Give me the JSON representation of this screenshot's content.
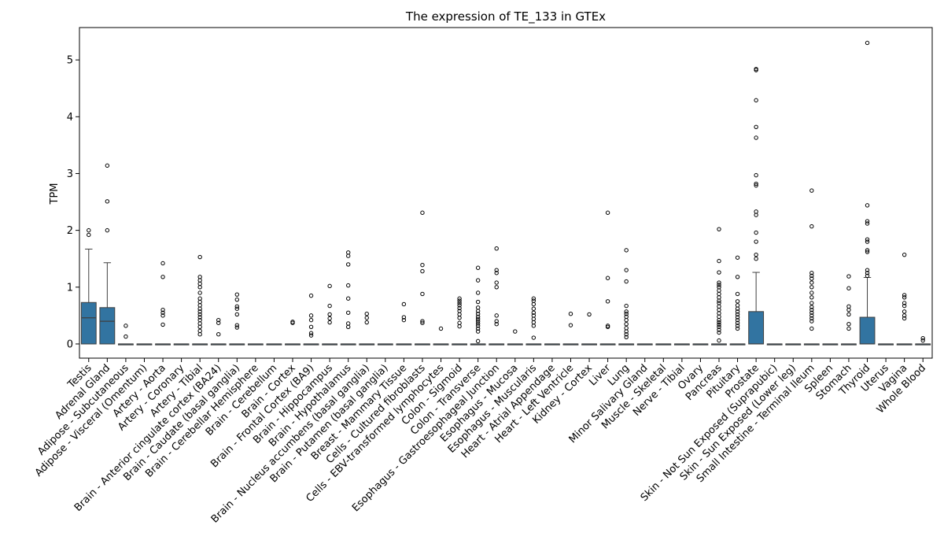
{
  "chart_data": {
    "type": "box",
    "title": "The expression of TE_133 in GTEx",
    "xlabel": "",
    "ylabel": "TPM",
    "ylim": [
      -0.25,
      5.57
    ],
    "yticks": [
      0,
      1,
      2,
      3,
      4,
      5
    ],
    "box_color": "#3274a1",
    "categories": [
      {
        "name": "Testis",
        "q1": 0,
        "median": 0.46,
        "q3": 0.73,
        "whisker_low": 0,
        "whisker_high": 1.67,
        "outliers": [
          1.92,
          2.0
        ]
      },
      {
        "name": "Adrenal Gland",
        "q1": 0,
        "median": 0.4,
        "q3": 0.64,
        "whisker_low": 0,
        "whisker_high": 1.43,
        "outliers": [
          2.0,
          2.51,
          3.14
        ]
      },
      {
        "name": "Adipose - Subcutaneous",
        "q1": 0,
        "median": 0,
        "q3": 0,
        "whisker_low": 0,
        "whisker_high": 0,
        "outliers": [
          0.13,
          0.32
        ]
      },
      {
        "name": "Adipose - Visceral (Omentum)",
        "q1": 0,
        "median": 0,
        "q3": 0,
        "whisker_low": 0,
        "whisker_high": 0,
        "outliers": []
      },
      {
        "name": "Artery - Aorta",
        "q1": 0,
        "median": 0,
        "q3": 0,
        "whisker_low": 0,
        "whisker_high": 0,
        "outliers": [
          0.34,
          0.5,
          0.55,
          0.6,
          1.18,
          1.42
        ]
      },
      {
        "name": "Artery - Coronary",
        "q1": 0,
        "median": 0,
        "q3": 0,
        "whisker_low": 0,
        "whisker_high": 0,
        "outliers": []
      },
      {
        "name": "Artery - Tibial",
        "q1": 0,
        "median": 0,
        "q3": 0,
        "whisker_low": 0,
        "whisker_high": 0,
        "outliers": [
          0.17,
          0.23,
          0.3,
          0.36,
          0.42,
          0.47,
          0.52,
          0.57,
          0.62,
          0.68,
          0.74,
          0.8,
          0.9,
          1.0,
          1.06,
          1.12,
          1.18,
          1.53
        ]
      },
      {
        "name": "Brain - Anterior cingulate cortex (BA24)",
        "q1": 0,
        "median": 0,
        "q3": 0,
        "whisker_low": 0,
        "whisker_high": 0,
        "outliers": [
          0.17,
          0.37,
          0.42
        ]
      },
      {
        "name": "Brain - Caudate (basal ganglia)",
        "q1": 0,
        "median": 0,
        "q3": 0,
        "whisker_low": 0,
        "whisker_high": 0,
        "outliers": [
          0.29,
          0.33,
          0.52,
          0.62,
          0.66,
          0.78,
          0.87
        ]
      },
      {
        "name": "Brain - Cerebellar Hemisphere",
        "q1": 0,
        "median": 0,
        "q3": 0,
        "whisker_low": 0,
        "whisker_high": 0,
        "outliers": []
      },
      {
        "name": "Brain - Cerebellum",
        "q1": 0,
        "median": 0,
        "q3": 0,
        "whisker_low": 0,
        "whisker_high": 0,
        "outliers": []
      },
      {
        "name": "Brain - Cortex",
        "q1": 0,
        "median": 0,
        "q3": 0,
        "whisker_low": 0,
        "whisker_high": 0,
        "outliers": [
          0.37,
          0.39
        ]
      },
      {
        "name": "Brain - Frontal Cortex (BA9)",
        "q1": 0,
        "median": 0,
        "q3": 0,
        "whisker_low": 0,
        "whisker_high": 0,
        "outliers": [
          0.15,
          0.19,
          0.3,
          0.42,
          0.5,
          0.85
        ]
      },
      {
        "name": "Brain - Hippocampus",
        "q1": 0,
        "median": 0,
        "q3": 0,
        "whisker_low": 0,
        "whisker_high": 0,
        "outliers": [
          0.38,
          0.45,
          0.52,
          0.67,
          1.02
        ]
      },
      {
        "name": "Brain - Hypothalamus",
        "q1": 0,
        "median": 0,
        "q3": 0,
        "whisker_low": 0,
        "whisker_high": 0,
        "outliers": [
          0.3,
          0.36,
          0.55,
          0.8,
          1.03,
          1.4,
          1.55,
          1.61
        ]
      },
      {
        "name": "Brain - Nucleus accumbens (basal ganglia)",
        "q1": 0,
        "median": 0,
        "q3": 0,
        "whisker_low": 0,
        "whisker_high": 0,
        "outliers": [
          0.38,
          0.46,
          0.53
        ]
      },
      {
        "name": "Brain - Putamen (basal ganglia)",
        "q1": 0,
        "median": 0,
        "q3": 0,
        "whisker_low": 0,
        "whisker_high": 0,
        "outliers": []
      },
      {
        "name": "Breast - Mammary Tissue",
        "q1": 0,
        "median": 0,
        "q3": 0,
        "whisker_low": 0,
        "whisker_high": 0,
        "outliers": [
          0.42,
          0.47,
          0.7
        ]
      },
      {
        "name": "Cells - Cultured fibroblasts",
        "q1": 0,
        "median": 0,
        "q3": 0,
        "whisker_low": 0,
        "whisker_high": 0,
        "outliers": [
          0.37,
          0.4,
          0.88,
          1.28,
          1.39,
          2.31
        ]
      },
      {
        "name": "Cells - EBV-transformed lymphocytes",
        "q1": 0,
        "median": 0,
        "q3": 0,
        "whisker_low": 0,
        "whisker_high": 0,
        "outliers": [
          0.27
        ]
      },
      {
        "name": "Colon - Sigmoid",
        "q1": 0,
        "median": 0,
        "q3": 0,
        "whisker_low": 0,
        "whisker_high": 0,
        "outliers": [
          0.31,
          0.37,
          0.46,
          0.52,
          0.58,
          0.63,
          0.68,
          0.72,
          0.76,
          0.8
        ]
      },
      {
        "name": "Colon - Transverse",
        "q1": 0,
        "median": 0,
        "q3": 0,
        "whisker_low": 0,
        "whisker_high": 0,
        "outliers": [
          0.05,
          0.22,
          0.27,
          0.32,
          0.36,
          0.4,
          0.44,
          0.48,
          0.53,
          0.58,
          0.64,
          0.74,
          0.9,
          1.12,
          1.34
        ]
      },
      {
        "name": "Esophagus - Gastroesophageal Junction",
        "q1": 0,
        "median": 0,
        "q3": 0,
        "whisker_low": 0,
        "whisker_high": 0,
        "outliers": [
          0.35,
          0.4,
          0.5,
          1.0,
          1.08,
          1.25,
          1.3,
          1.68
        ]
      },
      {
        "name": "Esophagus - Mucosa",
        "q1": 0,
        "median": 0,
        "q3": 0,
        "whisker_low": 0,
        "whisker_high": 0,
        "outliers": [
          0.22
        ]
      },
      {
        "name": "Esophagus - Muscularis",
        "q1": 0,
        "median": 0,
        "q3": 0,
        "whisker_low": 0,
        "whisker_high": 0,
        "outliers": [
          0.11,
          0.32,
          0.38,
          0.44,
          0.5,
          0.55,
          0.62,
          0.7,
          0.76,
          0.8
        ]
      },
      {
        "name": "Heart - Atrial Appendage",
        "q1": 0,
        "median": 0,
        "q3": 0,
        "whisker_low": 0,
        "whisker_high": 0,
        "outliers": []
      },
      {
        "name": "Heart - Left Ventricle",
        "q1": 0,
        "median": 0,
        "q3": 0,
        "whisker_low": 0,
        "whisker_high": 0,
        "outliers": [
          0.33,
          0.53
        ]
      },
      {
        "name": "Kidney - Cortex",
        "q1": 0,
        "median": 0,
        "q3": 0,
        "whisker_low": 0,
        "whisker_high": 0,
        "outliers": [
          0.52
        ]
      },
      {
        "name": "Liver",
        "q1": 0,
        "median": 0,
        "q3": 0,
        "whisker_low": 0,
        "whisker_high": 0,
        "outliers": [
          0.3,
          0.32,
          0.75,
          1.16,
          2.31
        ]
      },
      {
        "name": "Lung",
        "q1": 0,
        "median": 0,
        "q3": 0,
        "whisker_low": 0,
        "whisker_high": 0,
        "outliers": [
          0.12,
          0.17,
          0.22,
          0.28,
          0.35,
          0.42,
          0.48,
          0.53,
          0.57,
          0.67,
          1.1,
          1.3,
          1.65
        ]
      },
      {
        "name": "Minor Salivary Gland",
        "q1": 0,
        "median": 0,
        "q3": 0,
        "whisker_low": 0,
        "whisker_high": 0,
        "outliers": []
      },
      {
        "name": "Muscle - Skeletal",
        "q1": 0,
        "median": 0,
        "q3": 0,
        "whisker_low": 0,
        "whisker_high": 0,
        "outliers": []
      },
      {
        "name": "Nerve - Tibial",
        "q1": 0,
        "median": 0,
        "q3": 0,
        "whisker_low": 0,
        "whisker_high": 0,
        "outliers": []
      },
      {
        "name": "Ovary",
        "q1": 0,
        "median": 0,
        "q3": 0,
        "whisker_low": 0,
        "whisker_high": 0,
        "outliers": []
      },
      {
        "name": "Pancreas",
        "q1": 0,
        "median": 0,
        "q3": 0,
        "whisker_low": 0,
        "whisker_high": 0,
        "outliers": [
          0.06,
          0.2,
          0.25,
          0.3,
          0.34,
          0.38,
          0.42,
          0.48,
          0.54,
          0.6,
          0.66,
          0.72,
          0.76,
          0.82,
          0.88,
          0.94,
          1.0,
          1.04,
          1.08,
          1.26,
          1.46,
          2.02
        ]
      },
      {
        "name": "Pituitary",
        "q1": 0,
        "median": 0,
        "q3": 0,
        "whisker_low": 0,
        "whisker_high": 0,
        "outliers": [
          0.27,
          0.32,
          0.37,
          0.42,
          0.47,
          0.52,
          0.57,
          0.62,
          0.68,
          0.75,
          0.88,
          1.18,
          1.52
        ]
      },
      {
        "name": "Prostate",
        "q1": 0,
        "median": 0,
        "q3": 0.57,
        "whisker_low": 0,
        "whisker_high": 1.26,
        "outliers": [
          1.5,
          1.57,
          1.8,
          1.96,
          2.27,
          2.33,
          2.79,
          2.82,
          2.97,
          3.63,
          3.82,
          4.29,
          4.82,
          4.84
        ]
      },
      {
        "name": "Skin - Not Sun Exposed (Suprapubic)",
        "q1": 0,
        "median": 0,
        "q3": 0,
        "whisker_low": 0,
        "whisker_high": 0,
        "outliers": []
      },
      {
        "name": "Skin - Sun Exposed (Lower leg)",
        "q1": 0,
        "median": 0,
        "q3": 0,
        "whisker_low": 0,
        "whisker_high": 0,
        "outliers": []
      },
      {
        "name": "Small Intestine - Terminal Ileum",
        "q1": 0,
        "median": 0,
        "q3": 0,
        "whisker_low": 0,
        "whisker_high": 0,
        "outliers": [
          0.27,
          0.4,
          0.45,
          0.5,
          0.55,
          0.6,
          0.65,
          0.72,
          0.82,
          0.9,
          1.0,
          1.08,
          1.15,
          1.2,
          1.25,
          2.07,
          2.7
        ]
      },
      {
        "name": "Spleen",
        "q1": 0,
        "median": 0,
        "q3": 0,
        "whisker_low": 0,
        "whisker_high": 0,
        "outliers": []
      },
      {
        "name": "Stomach",
        "q1": 0,
        "median": 0,
        "q3": 0,
        "whisker_low": 0,
        "whisker_high": 0,
        "outliers": [
          0.27,
          0.35,
          0.52,
          0.6,
          0.66,
          0.98,
          1.19
        ]
      },
      {
        "name": "Thyroid",
        "q1": 0,
        "median": 0,
        "q3": 0.47,
        "whisker_low": 0,
        "whisker_high": 1.17,
        "outliers": [
          1.2,
          1.25,
          1.3,
          1.62,
          1.65,
          1.8,
          1.84,
          2.12,
          2.16,
          2.44,
          5.3
        ]
      },
      {
        "name": "Uterus",
        "q1": 0,
        "median": 0,
        "q3": 0,
        "whisker_low": 0,
        "whisker_high": 0,
        "outliers": []
      },
      {
        "name": "Vagina",
        "q1": 0,
        "median": 0,
        "q3": 0,
        "whisker_low": 0,
        "whisker_high": 0,
        "outliers": [
          0.45,
          0.5,
          0.57,
          0.67,
          0.72,
          0.82,
          0.86,
          1.57
        ]
      },
      {
        "name": "Whole Blood",
        "q1": 0,
        "median": 0,
        "q3": 0,
        "whisker_low": 0,
        "whisker_high": 0,
        "outliers": [
          0.06,
          0.1
        ]
      }
    ]
  }
}
